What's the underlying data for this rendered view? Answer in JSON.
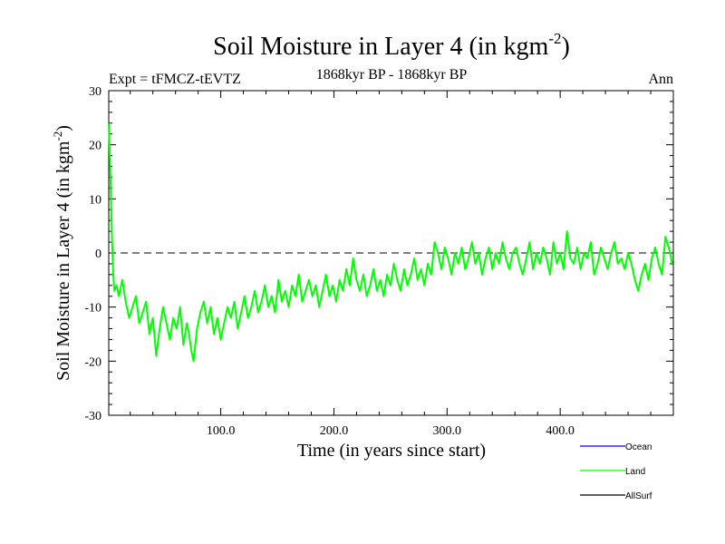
{
  "chart_data": {
    "type": "line",
    "title": "Soil Moisture in Layer 4 (in kgm",
    "title_sup": "-2",
    "title_close": ")",
    "subtitle_left": "Expt = tFMCZ-tEVTZ",
    "subtitle_center": "1868kyr BP - 1868kyr BP",
    "subtitle_right": "Ann",
    "xlabel": "Time (in years since start)",
    "ylabel": "Soil Moisture in Layer 4 (in kgm",
    "ylabel_sup": "-2",
    "ylabel_close": ")",
    "xlim": [
      1,
      500
    ],
    "ylim": [
      -30,
      30
    ],
    "xticks": [
      100,
      200,
      300,
      400
    ],
    "xtick_labels": [
      "100.0",
      "200.0",
      "300.0",
      "400.0"
    ],
    "yticks": [
      -30,
      -20,
      -10,
      0,
      10,
      20,
      30
    ],
    "ytick_labels": [
      "-30",
      "-20",
      "-10",
      "0",
      "10",
      "20",
      "30"
    ],
    "zero_line": 0,
    "series": [
      {
        "name": "Ocean",
        "color": "#0000ff",
        "x": [],
        "values": []
      },
      {
        "name": "Land",
        "color": "#00ff00",
        "x": [
          1,
          2,
          3,
          4,
          5,
          6,
          8,
          10,
          13,
          16,
          19,
          22,
          25,
          28,
          31,
          34,
          37,
          40,
          43,
          46,
          49,
          52,
          55,
          58,
          61,
          64,
          67,
          70,
          72,
          74,
          76,
          79,
          82,
          85,
          88,
          91,
          94,
          97,
          100,
          103,
          106,
          109,
          112,
          115,
          118,
          121,
          124,
          127,
          130,
          133,
          136,
          139,
          142,
          145,
          148,
          151,
          154,
          157,
          160,
          163,
          166,
          169,
          172,
          175,
          178,
          181,
          184,
          187,
          190,
          193,
          196,
          199,
          202,
          205,
          208,
          211,
          214,
          217,
          220,
          223,
          226,
          229,
          232,
          235,
          238,
          241,
          244,
          247,
          250,
          253,
          256,
          259,
          262,
          265,
          268,
          271,
          274,
          277,
          280,
          283,
          286,
          289,
          292,
          295,
          298,
          301,
          304,
          307,
          310,
          313,
          316,
          319,
          322,
          325,
          328,
          331,
          334,
          337,
          340,
          343,
          346,
          349,
          352,
          355,
          358,
          361,
          364,
          367,
          370,
          373,
          376,
          379,
          382,
          385,
          388,
          391,
          394,
          397,
          400,
          403,
          406,
          409,
          412,
          415,
          418,
          421,
          424,
          427,
          430,
          433,
          436,
          439,
          442,
          445,
          448,
          451,
          454,
          457,
          460,
          463,
          466,
          469,
          472,
          475,
          478,
          481,
          484,
          487,
          490,
          493,
          496,
          499
        ],
        "values": [
          24,
          18,
          10,
          2,
          -4,
          -7,
          -6,
          -8,
          -5,
          -9,
          -12,
          -10,
          -8,
          -13,
          -11,
          -9,
          -15,
          -12,
          -19,
          -14,
          -10,
          -13,
          -16,
          -12,
          -14,
          -10,
          -17,
          -13,
          -15,
          -18,
          -20,
          -14,
          -11,
          -9,
          -13,
          -10,
          -15,
          -12,
          -16,
          -13,
          -10,
          -12,
          -9,
          -14,
          -11,
          -8,
          -12,
          -10,
          -7,
          -11,
          -9,
          -6,
          -10,
          -8,
          -11,
          -5,
          -9,
          -7,
          -10,
          -6,
          -8,
          -4,
          -9,
          -7,
          -5,
          -8,
          -6,
          -10,
          -7,
          -4,
          -8,
          -6,
          -9,
          -5,
          -7,
          -3,
          -6,
          -1,
          -5,
          -7,
          -4,
          -8,
          -6,
          -3,
          -7,
          -5,
          -8,
          -4,
          -6,
          -2,
          -5,
          -7,
          -3,
          -6,
          -4,
          -1,
          -5,
          -3,
          -6,
          -2,
          -4,
          2,
          0,
          -3,
          1,
          -1,
          -4,
          0,
          -2,
          1,
          -3,
          -1,
          2,
          -2,
          0,
          -4,
          -1,
          1,
          -3,
          0,
          -2,
          2,
          -1,
          -3,
          0,
          1,
          -2,
          -4,
          -1,
          2,
          -3,
          0,
          -2,
          1,
          -1,
          -4,
          2,
          -2,
          0,
          -3,
          4,
          -1,
          -2,
          1,
          -3,
          0,
          -1,
          2,
          -4,
          -2,
          1,
          -1,
          -3,
          0,
          2,
          -2,
          -1,
          -3,
          0,
          -2,
          -5,
          -7,
          -4,
          -2,
          -5,
          -1,
          1,
          -2,
          -4,
          3,
          1,
          -2
        ]
      },
      {
        "name": "AllSurf",
        "color": "#000000",
        "x": [],
        "values": []
      }
    ]
  }
}
